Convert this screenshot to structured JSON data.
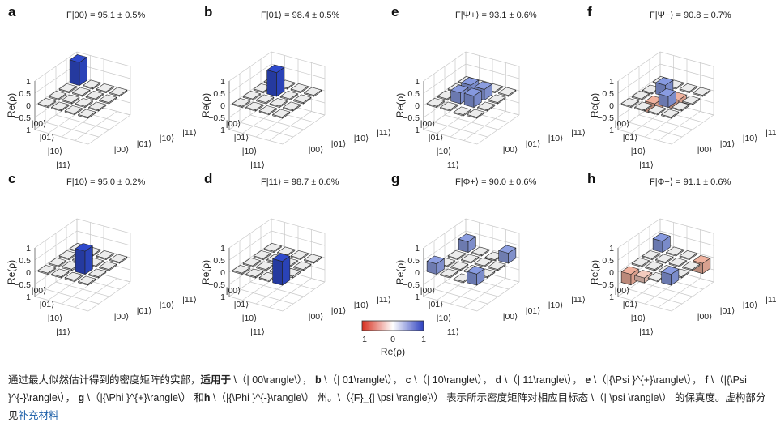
{
  "figure": {
    "zlabel": "Re(ρ)",
    "z_ticks": [
      "1",
      "0.5",
      "0",
      "−0.5",
      "−1"
    ],
    "basis": [
      "|00⟩",
      "|01⟩",
      "|10⟩",
      "|11⟩"
    ],
    "colorbar": {
      "label": "Re(ρ)",
      "ticks": [
        "−1",
        "0",
        "1"
      ],
      "colors": {
        "negative": "#d7301f",
        "zero": "#ffffff",
        "positive": "#2c3fbf"
      }
    }
  },
  "chart_data": [
    {
      "type": "bar3d",
      "panel": "a",
      "fidelity_label": "F|00⟩ = 95.1 ± 0.5%",
      "state": "|00⟩",
      "fidelity": 95.1,
      "error": 0.5,
      "zlim": [
        -1,
        1
      ],
      "matrix": [
        [
          0.95,
          0.02,
          0.02,
          0.02
        ],
        [
          0.02,
          0.01,
          0.02,
          0.02
        ],
        [
          0.03,
          -0.04,
          0.02,
          0.02
        ],
        [
          0.02,
          0.02,
          0.02,
          0.01
        ]
      ]
    },
    {
      "type": "bar3d",
      "panel": "b",
      "fidelity_label": "F|01⟩ = 98.4 ± 0.5%",
      "state": "|01⟩",
      "fidelity": 98.4,
      "error": 0.5,
      "zlim": [
        -1,
        1
      ],
      "matrix": [
        [
          0.01,
          0.02,
          0.02,
          0.01
        ],
        [
          0.02,
          0.98,
          0.02,
          0.02
        ],
        [
          0.02,
          0.02,
          0.01,
          0.02
        ],
        [
          0.01,
          0.02,
          0.02,
          0.01
        ]
      ]
    },
    {
      "type": "bar3d",
      "panel": "e",
      "fidelity_label": "F|Ψ+⟩ = 93.1 ± 0.6%",
      "state": "|Ψ+⟩",
      "fidelity": 93.1,
      "error": 0.6,
      "zlim": [
        -1,
        1
      ],
      "matrix": [
        [
          0.01,
          0.02,
          0.02,
          0.01
        ],
        [
          0.02,
          0.46,
          0.45,
          0.02
        ],
        [
          0.02,
          0.44,
          0.47,
          -0.05
        ],
        [
          0.01,
          0.02,
          -0.04,
          0.01
        ]
      ]
    },
    {
      "type": "bar3d",
      "panel": "f",
      "fidelity_label": "F|Ψ−⟩ = 90.8 ± 0.7%",
      "state": "|Ψ−⟩",
      "fidelity": 90.8,
      "error": 0.7,
      "zlim": [
        -1,
        1
      ],
      "matrix": [
        [
          0.01,
          -0.05,
          0.02,
          0.01
        ],
        [
          -0.03,
          0.46,
          -0.43,
          0.02
        ],
        [
          0.02,
          -0.42,
          0.45,
          0.02
        ],
        [
          0.01,
          -0.05,
          0.02,
          0.01
        ]
      ]
    },
    {
      "type": "bar3d",
      "panel": "c",
      "fidelity_label": "F|10⟩ = 95.0 ± 0.2%",
      "state": "|10⟩",
      "fidelity": 95.0,
      "error": 0.2,
      "zlim": [
        -1,
        1
      ],
      "matrix": [
        [
          0.01,
          0.02,
          0.03,
          0.02
        ],
        [
          0.02,
          0.02,
          0.06,
          0.02
        ],
        [
          0.03,
          0.05,
          0.95,
          0.06
        ],
        [
          0.02,
          0.02,
          0.05,
          0.02
        ]
      ]
    },
    {
      "type": "bar3d",
      "panel": "d",
      "fidelity_label": "F|11⟩ = 98.7 ± 0.6%",
      "state": "|11⟩",
      "fidelity": 98.7,
      "error": 0.6,
      "zlim": [
        -1,
        1
      ],
      "matrix": [
        [
          0.01,
          0.02,
          0.02,
          0.02
        ],
        [
          0.02,
          0.01,
          0.02,
          0.03
        ],
        [
          0.02,
          0.02,
          0.01,
          0.06
        ],
        [
          0.02,
          0.03,
          0.07,
          0.98
        ]
      ]
    },
    {
      "type": "bar3d",
      "panel": "g",
      "fidelity_label": "F|Φ+⟩ = 90.0 ± 0.6%",
      "state": "|Φ+⟩",
      "fidelity": 90.0,
      "error": 0.6,
      "zlim": [
        -1,
        1
      ],
      "matrix": [
        [
          0.44,
          -0.04,
          0.03,
          0.43
        ],
        [
          0.02,
          0.03,
          0.05,
          0.02
        ],
        [
          -0.05,
          -0.04,
          0.02,
          -0.05
        ],
        [
          0.42,
          0.03,
          0.04,
          0.46
        ]
      ]
    },
    {
      "type": "bar3d",
      "panel": "h",
      "fidelity_label": "F|Φ−⟩ = 91.1 ± 0.6%",
      "state": "|Φ−⟩",
      "fidelity": 91.1,
      "error": 0.6,
      "zlim": [
        -1,
        1
      ],
      "matrix": [
        [
          0.46,
          0.02,
          0.02,
          -0.44
        ],
        [
          0.02,
          0.02,
          0.02,
          -0.2
        ],
        [
          0.02,
          0.02,
          0.02,
          0.02
        ],
        [
          -0.42,
          0.02,
          0.02,
          0.45
        ]
      ]
    }
  ],
  "caption": {
    "line1": "通过最大似然估计得到的密度矩阵的实部，",
    "line1_bold": "适用于",
    "line1_rest": " \\（| 00\\rangle\\）， ",
    "b_label": "b",
    "b_text": " \\（| 01\\rangle\\）， ",
    "c_label": "c",
    "c_text": " \\（| 10\\rangle\\）， ",
    "d_label": "d",
    "d_text": " \\（| 11\\rangle\\）， ",
    "e_label": "e",
    "e_text": " \\（|{\\Psi }^{+}\\rangle\\）， ",
    "f_label": "f",
    "f_text": " \\（|{\\Psi }^{-}\\rangle\\）， ",
    "g_label": "g",
    "g_text": " \\（|{\\Phi }^{+}\\rangle\\） 和",
    "h_label": "h",
    "h_text": " \\（|{\\Phi }^{-}\\rangle\\） 州。\\（{F}_{| \\psi \\rangle}\\） 表示所示密度矩阵对相应目标态 \\（| \\psi \\rangle\\） 的保真度。虚构部分见",
    "link": "补充材料"
  }
}
